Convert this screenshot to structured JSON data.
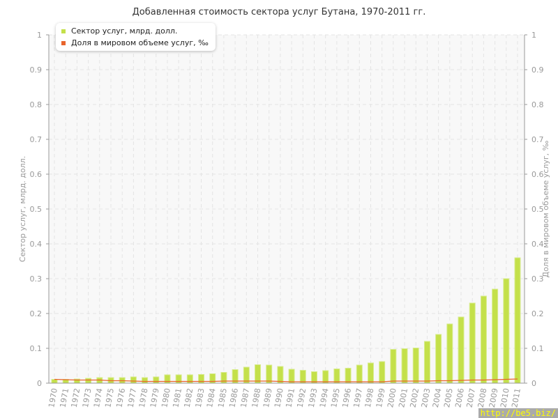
{
  "chart_data": {
    "type": "bar",
    "title": "Добавленная стоимость сектора услуг Бутана, 1970-2011 гг.",
    "ylabel": "Сектор услуг, млрд. долл.",
    "y2label": "Доля в мировом объеме услуг, ‰",
    "ylim": [
      0,
      1
    ],
    "y2lim": [
      0,
      1
    ],
    "yticks": [
      "0",
      "0.1",
      "0.2",
      "0.3",
      "0.4",
      "0.5",
      "0.6",
      "0.7",
      "0.8",
      "0.9",
      "1"
    ],
    "grid": true,
    "legend": "top-left",
    "categories": [
      "1970",
      "1971",
      "1972",
      "1973",
      "1974",
      "1975",
      "1976",
      "1977",
      "1978",
      "1979",
      "1980",
      "1981",
      "1982",
      "1983",
      "1984",
      "1985",
      "1986",
      "1987",
      "1988",
      "1989",
      "1990",
      "1991",
      "1992",
      "1993",
      "1994",
      "1995",
      "1996",
      "1997",
      "1998",
      "1999",
      "2000",
      "2001",
      "2002",
      "2003",
      "2004",
      "2005",
      "2006",
      "2007",
      "2008",
      "2009",
      "2010",
      "2011"
    ],
    "series": [
      {
        "name": "Сектор услуг, млрд. долл.",
        "type": "bar",
        "axis": "left",
        "color": "#c4e04a",
        "values": [
          0.011,
          0.011,
          0.012,
          0.014,
          0.016,
          0.016,
          0.016,
          0.018,
          0.016,
          0.018,
          0.024,
          0.024,
          0.024,
          0.025,
          0.027,
          0.031,
          0.039,
          0.046,
          0.053,
          0.052,
          0.048,
          0.04,
          0.037,
          0.033,
          0.036,
          0.041,
          0.043,
          0.052,
          0.058,
          0.062,
          0.097,
          0.099,
          0.101,
          0.12,
          0.14,
          0.17,
          0.19,
          0.23,
          0.25,
          0.27,
          0.3,
          0.36
        ]
      },
      {
        "name": "Доля в мировом объеме услуг, ‰",
        "type": "line",
        "axis": "right",
        "color": "#e8642c",
        "values": [
          0.011,
          0.01,
          0.009,
          0.009,
          0.009,
          0.007,
          0.007,
          0.006,
          0.005,
          0.005,
          0.005,
          0.005,
          0.005,
          0.005,
          0.005,
          0.006,
          0.006,
          0.006,
          0.006,
          0.006,
          0.005,
          0.004,
          0.004,
          0.004,
          0.004,
          0.004,
          0.004,
          0.004,
          0.004,
          0.004,
          0.006,
          0.006,
          0.006,
          0.006,
          0.007,
          0.007,
          0.008,
          0.009,
          0.009,
          0.01,
          0.011,
          0.012
        ]
      }
    ]
  },
  "watermark": "http://be5.biz/"
}
